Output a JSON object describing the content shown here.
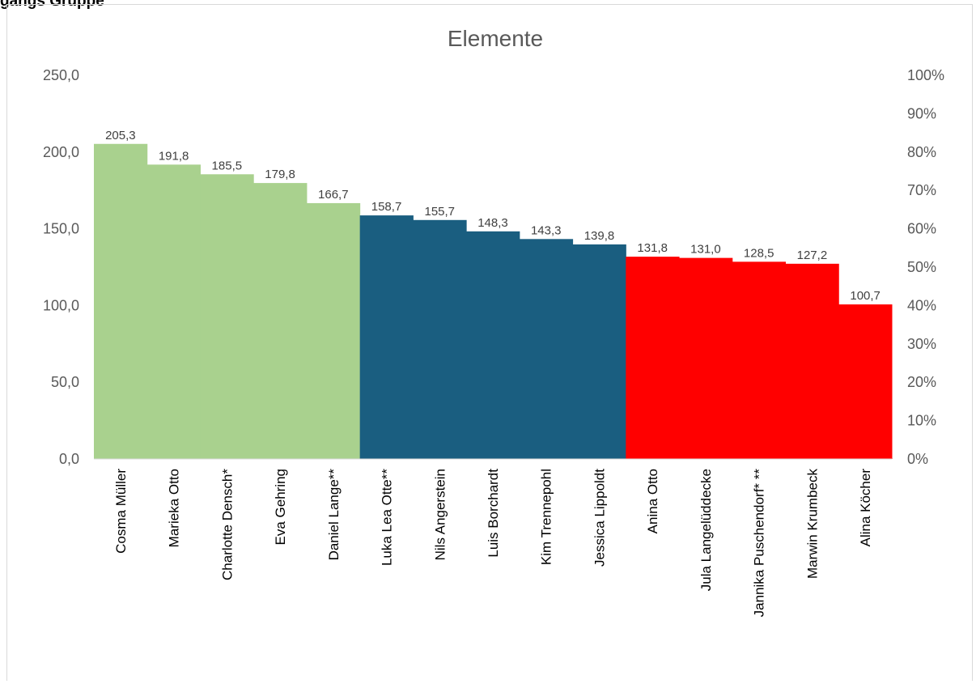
{
  "header": {
    "partial_label": "gangs Gruppe"
  },
  "chart_data": {
    "type": "bar",
    "title": "Elemente",
    "categories": [
      "Cosma Müller",
      "Marieka Otto",
      "Charlotte Densch*",
      "Eva Gehring",
      "Daniel Lange**",
      "Luka Lea Otte**",
      "Nils Angerstein",
      "Luis Borchardt",
      "Kim Trennepohl",
      "Jessica Lippoldt",
      "Anina Otto",
      "Jula Langelüddecke",
      "Jannika Puschendorf* **",
      "Marwin Krumbeck",
      "Alina Köcher"
    ],
    "values": [
      205.3,
      191.8,
      185.5,
      179.8,
      166.7,
      158.7,
      155.7,
      148.3,
      143.3,
      139.8,
      131.8,
      131.0,
      128.5,
      127.2,
      100.7
    ],
    "value_labels": [
      "205,3",
      "191,8",
      "185,5",
      "179,8",
      "166,7",
      "158,7",
      "155,7",
      "148,3",
      "143,3",
      "139,8",
      "131,8",
      "131,0",
      "128,5",
      "127,2",
      "100,7"
    ],
    "colors": [
      "#a9d18e",
      "#a9d18e",
      "#a9d18e",
      "#a9d18e",
      "#a9d18e",
      "#1a5e80",
      "#1a5e80",
      "#1a5e80",
      "#1a5e80",
      "#1a5e80",
      "#ff0000",
      "#ff0000",
      "#ff0000",
      "#ff0000",
      "#ff0000"
    ],
    "ylim": [
      0,
      250
    ],
    "y_ticks": [
      "0,0",
      "50,0",
      "100,0",
      "150,0",
      "200,0",
      "250,0"
    ],
    "y2lim": [
      0,
      100
    ],
    "y2_ticks": [
      "0%",
      "10%",
      "20%",
      "30%",
      "40%",
      "50%",
      "60%",
      "70%",
      "80%",
      "90%",
      "100%"
    ],
    "grid": false,
    "legend": "none"
  }
}
